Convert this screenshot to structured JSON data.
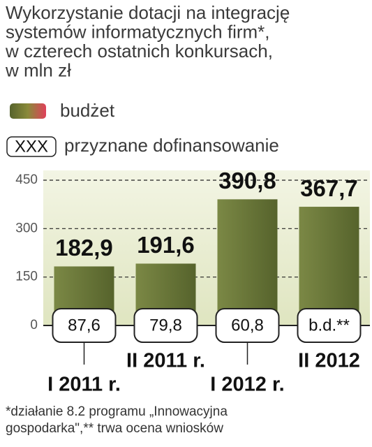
{
  "chart_data": {
    "type": "bar",
    "title_lines": [
      "Wykorzystanie dotacji na integrację",
      "systemów informatycznych firm*,",
      "w czterech ostatnich konkursach,",
      "w mln zł"
    ],
    "categories": [
      "I 2011 r.",
      "II 2011 r.",
      "I 2012 r.",
      "II 2012"
    ],
    "series": [
      {
        "name": "budżet",
        "color": "#66733a",
        "values": [
          182.9,
          191.6,
          390.8,
          367.7
        ],
        "value_labels": [
          "182,9",
          "191,6",
          "390,8",
          "367,7"
        ]
      },
      {
        "name": "przyznane dofinansowanie",
        "legend_label": "XXX",
        "values": [
          87.6,
          79.8,
          60.8,
          null
        ],
        "value_labels": [
          "87,6",
          "79,8",
          "60,8",
          "b.d.**"
        ]
      }
    ],
    "ylim": [
      0,
      450
    ],
    "yticks": [
      0,
      150,
      300,
      450
    ],
    "grid": true,
    "notes": [
      "*działanie 8.2 programu „Innowacyjna",
      " gospodarka\",** trwa ocena wniosków"
    ]
  }
}
